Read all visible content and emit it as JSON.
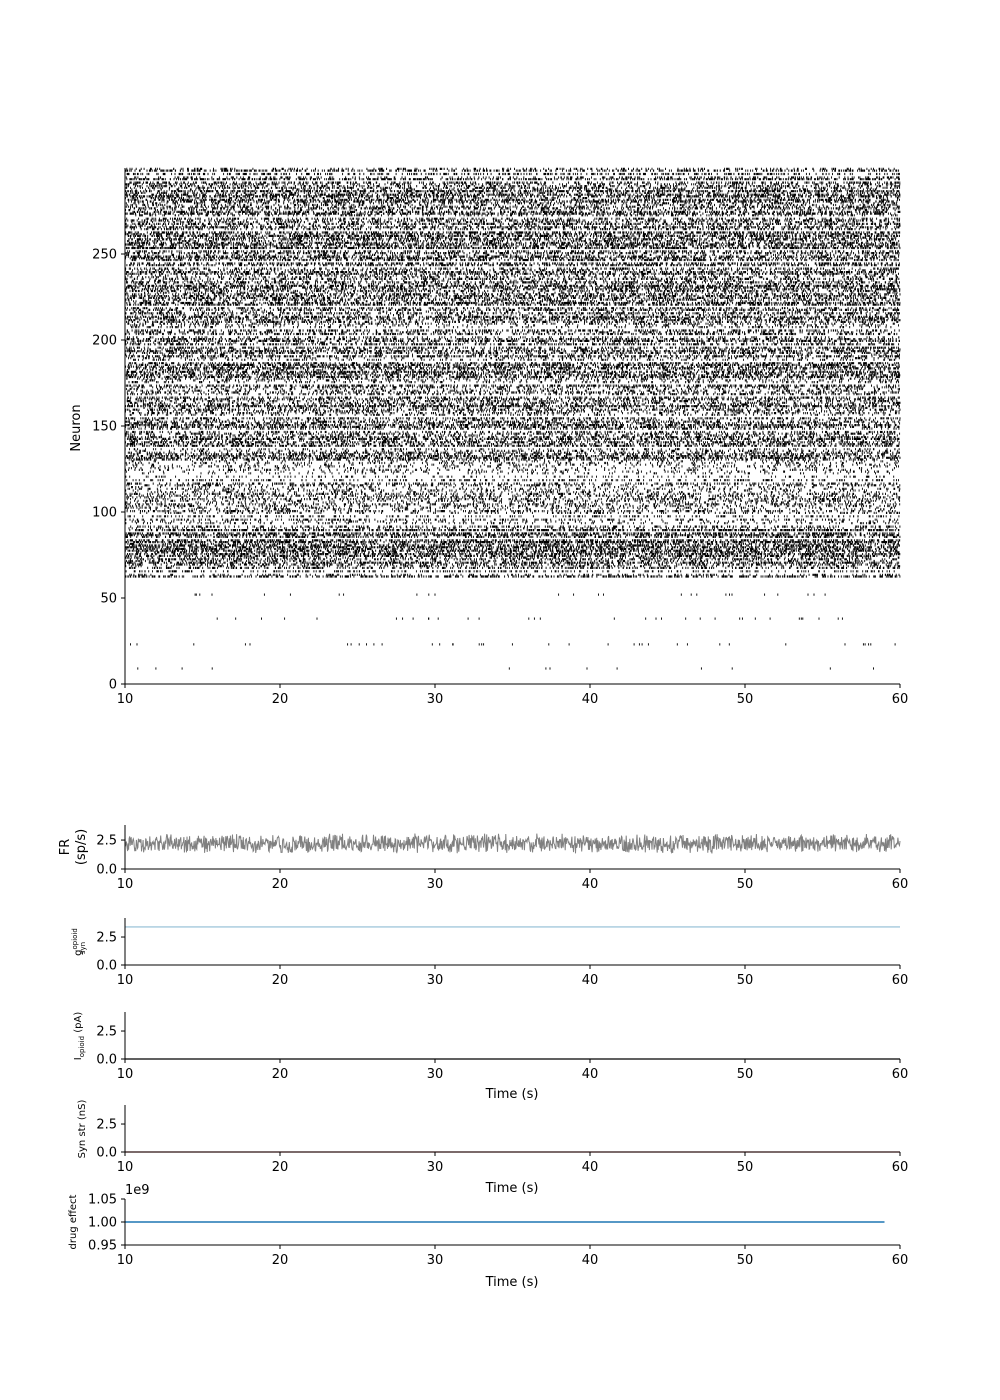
{
  "chart_data": [
    {
      "id": "raster",
      "type": "scatter",
      "xlabel": "",
      "ylabel": "Neuron",
      "xlim": [
        10,
        60
      ],
      "ylim": [
        0,
        300
      ],
      "xticks": [
        "10",
        "20",
        "30",
        "40",
        "50",
        "60"
      ],
      "yticks": [
        "0",
        "50",
        "100",
        "150",
        "200",
        "250"
      ],
      "marker": "vertical-tick",
      "color": "#000000",
      "neuron_rate_bands": [
        {
          "neurons": [
            0,
            55
          ],
          "rate_hz": 0.6,
          "sparse_rows": [
            9,
            23,
            38,
            52
          ]
        },
        {
          "neurons": [
            62,
            90
          ],
          "rate_hz": 9
        },
        {
          "neurons": [
            90,
            130
          ],
          "rate_hz": 4
        },
        {
          "neurons": [
            130,
            180
          ],
          "rate_hz": 8
        },
        {
          "neurons": [
            180,
            230
          ],
          "rate_hz": 7
        },
        {
          "neurons": [
            230,
            300
          ],
          "rate_hz": 8
        }
      ]
    },
    {
      "id": "fr",
      "type": "line",
      "xlabel": "",
      "ylabel": "FR",
      "ylabel2": "(sp/s)",
      "xlim": [
        10,
        60
      ],
      "ylim": [
        0,
        3.8
      ],
      "xticks": [
        "10",
        "20",
        "30",
        "40",
        "50",
        "60"
      ],
      "yticks": [
        "0.0",
        "2.5"
      ],
      "color": "#808080",
      "mean": 2.2,
      "range": [
        0.9,
        3.6
      ]
    },
    {
      "id": "gsyn",
      "type": "line",
      "xlabel": "",
      "ylabel": "g",
      "ylabel_sup": "opioid",
      "ylabel_sub": "syn",
      "xlim": [
        10,
        60
      ],
      "ylim": [
        0,
        4.2
      ],
      "xticks": [
        "10",
        "20",
        "30",
        "40",
        "50",
        "60"
      ],
      "yticks": [
        "0.0",
        "2.5"
      ],
      "color": "#8fbcd4",
      "x": [
        10,
        60
      ],
      "y": [
        3.4,
        3.4
      ]
    },
    {
      "id": "iopioid",
      "type": "line",
      "xlabel": "Time (s)",
      "ylabel": "I",
      "ylabel_sub": "opioid",
      "ylabel_unit": " (pA)",
      "xlim": [
        10,
        60
      ],
      "ylim": [
        0,
        4.2
      ],
      "xticks": [
        "10",
        "20",
        "30",
        "40",
        "50",
        "60"
      ],
      "yticks": [
        "0.0",
        "2.5"
      ],
      "color": "#000000",
      "x": [
        10,
        60
      ],
      "y": [
        0,
        0
      ]
    },
    {
      "id": "synstr",
      "type": "line",
      "xlabel": "Time (s)",
      "ylabel": "Syn str (nS)",
      "xlim": [
        10,
        60
      ],
      "ylim": [
        0,
        4.2
      ],
      "xticks": [
        "10",
        "20",
        "30",
        "40",
        "50",
        "60"
      ],
      "yticks": [
        "0.0",
        "2.5"
      ],
      "color": "#d9534f",
      "x": [
        10,
        60
      ],
      "y": [
        0,
        0
      ]
    },
    {
      "id": "drug",
      "type": "line",
      "xlabel": "Time (s)",
      "ylabel": "drug effect",
      "offset_label": "1e9",
      "xlim": [
        10,
        60
      ],
      "ylim": [
        0.95,
        1.05
      ],
      "xticks": [
        "10",
        "20",
        "30",
        "40",
        "50",
        "60"
      ],
      "yticks": [
        "0.95",
        "1.00",
        "1.05"
      ],
      "color": "#1f77b4",
      "x": [
        10,
        59
      ],
      "y": [
        1.0,
        1.0
      ]
    }
  ]
}
